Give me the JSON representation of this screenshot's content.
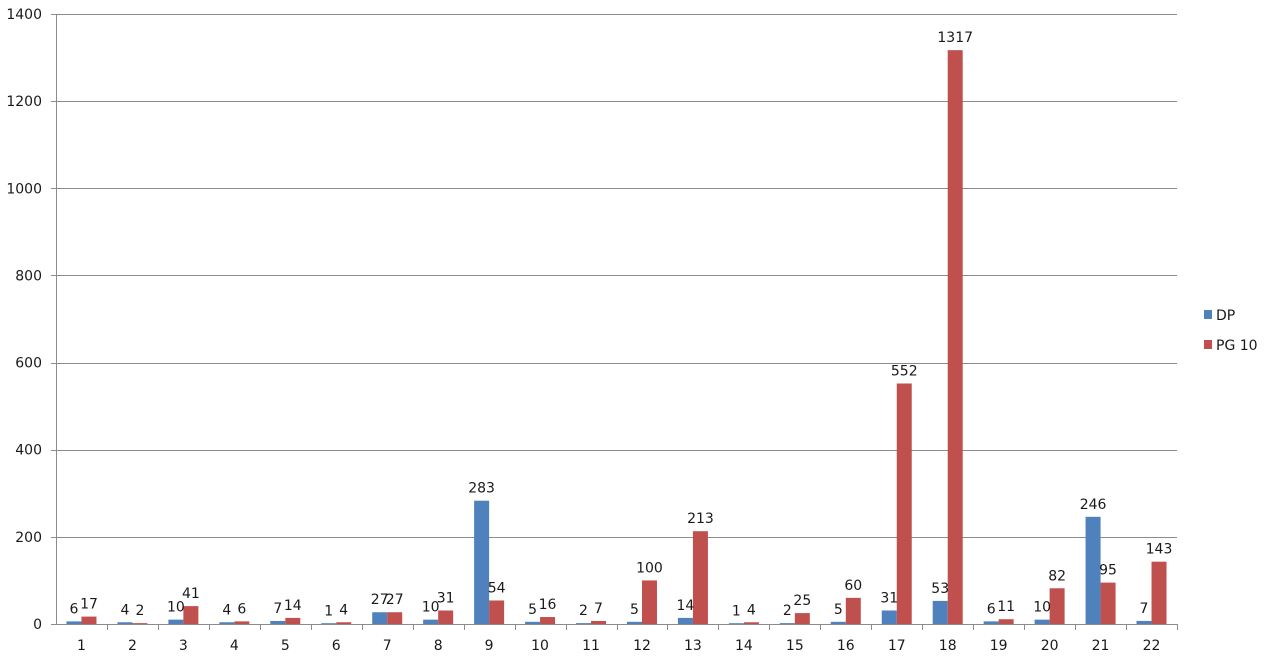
{
  "chart_data": {
    "type": "bar",
    "title": "",
    "xlabel": "",
    "ylabel": "",
    "categories": [
      "1",
      "2",
      "3",
      "4",
      "5",
      "6",
      "7",
      "8",
      "9",
      "10",
      "11",
      "12",
      "13",
      "14",
      "15",
      "16",
      "17",
      "18",
      "19",
      "20",
      "21",
      "22"
    ],
    "series": [
      {
        "name": "DP",
        "color": "#4f81bd",
        "values": [
          6,
          4,
          10,
          4,
          7,
          1,
          27,
          10,
          283,
          5,
          2,
          5,
          14,
          1,
          2,
          5,
          31,
          53,
          6,
          10,
          246,
          7
        ]
      },
      {
        "name": "PG 10",
        "color": "#c0504d",
        "values": [
          17,
          2,
          41,
          6,
          14,
          4,
          27,
          31,
          54,
          16,
          7,
          100,
          213,
          4,
          25,
          60,
          552,
          1317,
          11,
          82,
          95,
          143
        ]
      }
    ],
    "ylim": [
      0,
      1400
    ],
    "yticks": [
      0,
      200,
      400,
      600,
      800,
      1000,
      1200,
      1400
    ],
    "grid": true,
    "data_labels": true,
    "legend_position": "right"
  }
}
